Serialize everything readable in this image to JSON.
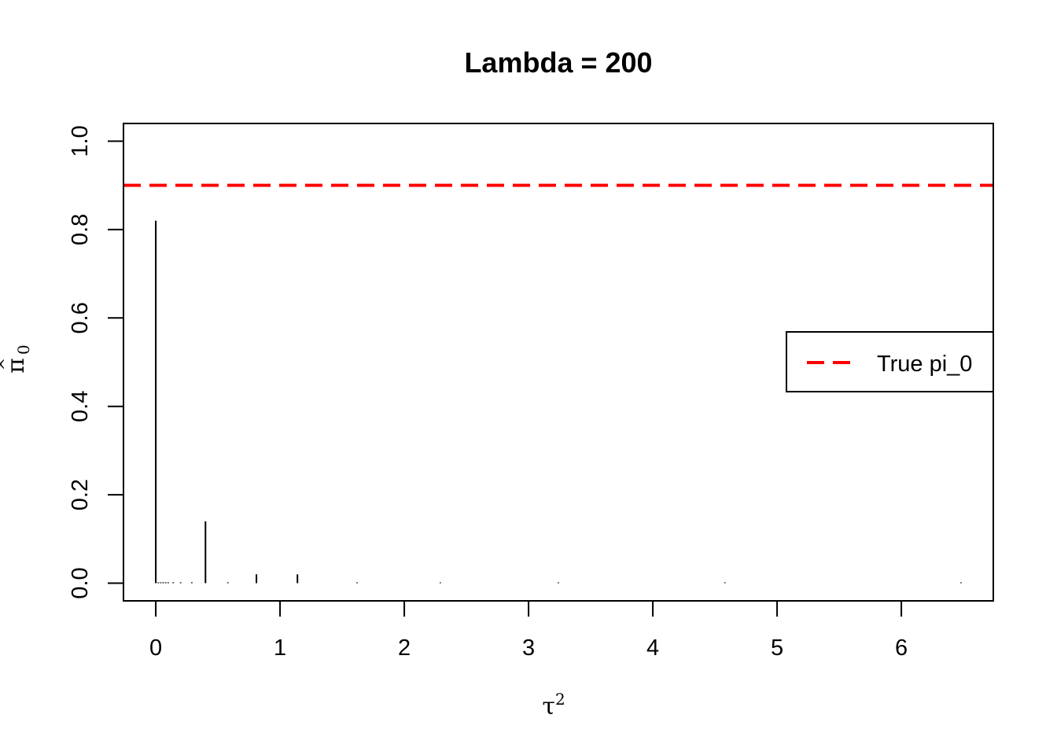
{
  "chart_data": {
    "type": "bar",
    "title": "Lambda = 200",
    "xlabel": {
      "symbol": "τ",
      "superscript": "2"
    },
    "ylabel": {
      "symbol": "π",
      "accent": "^",
      "subscript": "0"
    },
    "xlim": [
      -0.26,
      6.74
    ],
    "ylim": [
      -0.04,
      1.04
    ],
    "x_ticks": [
      0,
      1,
      2,
      3,
      4,
      5,
      6
    ],
    "y_ticks": [
      0.0,
      0.2,
      0.4,
      0.6,
      0.8,
      1.0
    ],
    "x_tick_labels": [
      "0",
      "1",
      "2",
      "3",
      "4",
      "5",
      "6"
    ],
    "y_tick_labels": [
      "0.0",
      "0.2",
      "0.4",
      "0.6",
      "0.8",
      "1.0"
    ],
    "x": [
      0.0,
      0.02,
      0.04,
      0.06,
      0.08,
      0.1,
      0.14,
      0.2,
      0.29,
      0.4,
      0.58,
      0.81,
      1.14,
      1.62,
      2.29,
      3.24,
      4.58,
      6.48
    ],
    "values": [
      0.82,
      0.002,
      0.002,
      0.002,
      0.002,
      0.002,
      0.002,
      0.002,
      0.002,
      0.14,
      0.002,
      0.02,
      0.02,
      0.001,
      0.001,
      0.001,
      0.001,
      0.001
    ],
    "reference_line": {
      "y": 0.9,
      "style": "dashed",
      "color": "#ff0000"
    },
    "legend": {
      "position": "right",
      "entries": [
        {
          "label": "True pi_0",
          "color": "#ff0000",
          "style": "dashed"
        }
      ]
    }
  }
}
